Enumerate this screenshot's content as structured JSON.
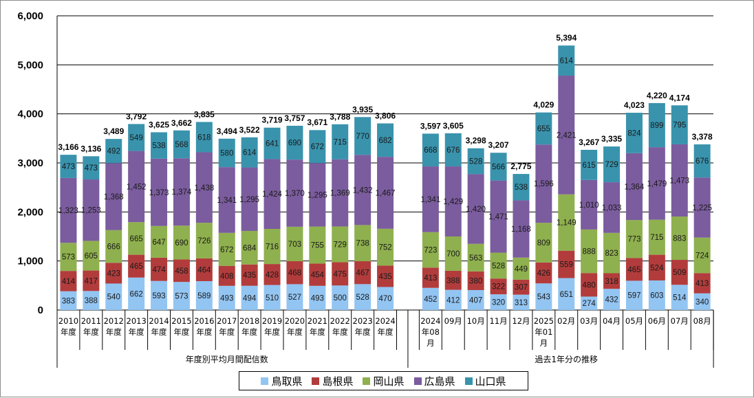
{
  "chart_data": {
    "type": "bar",
    "stacked": true,
    "ylim": [
      0,
      6000
    ],
    "yticks": [
      "0",
      "1,000",
      "2,000",
      "3,000",
      "4,000",
      "5,000",
      "6,000"
    ],
    "grid": true,
    "legend_position": "bottom",
    "groups": [
      "年度別平均月間配信数",
      "過去1年分の推移"
    ],
    "categories": [
      {
        "label": [
          "2010",
          "年度"
        ],
        "group": 0
      },
      {
        "label": [
          "2011",
          "年度"
        ],
        "group": 0
      },
      {
        "label": [
          "2012",
          "年度"
        ],
        "group": 0
      },
      {
        "label": [
          "2013",
          "年度"
        ],
        "group": 0
      },
      {
        "label": [
          "2014",
          "年度"
        ],
        "group": 0
      },
      {
        "label": [
          "2015",
          "年度"
        ],
        "group": 0
      },
      {
        "label": [
          "2016",
          "年度"
        ],
        "group": 0
      },
      {
        "label": [
          "2017",
          "年度"
        ],
        "group": 0
      },
      {
        "label": [
          "2018",
          "年度"
        ],
        "group": 0
      },
      {
        "label": [
          "2019",
          "年度"
        ],
        "group": 0
      },
      {
        "label": [
          "2020",
          "年度"
        ],
        "group": 0
      },
      {
        "label": [
          "2021",
          "年度"
        ],
        "group": 0
      },
      {
        "label": [
          "2022",
          "年度"
        ],
        "group": 0
      },
      {
        "label": [
          "2023",
          "年度"
        ],
        "group": 0
      },
      {
        "label": [
          "2024",
          "年度"
        ],
        "group": 0
      },
      {
        "label": [
          "2024",
          "年08",
          "月"
        ],
        "group": 1
      },
      {
        "label": [
          "09月"
        ],
        "group": 1
      },
      {
        "label": [
          "10月"
        ],
        "group": 1
      },
      {
        "label": [
          "11月"
        ],
        "group": 1
      },
      {
        "label": [
          "12月"
        ],
        "group": 1
      },
      {
        "label": [
          "2025",
          "年01",
          "月"
        ],
        "group": 1
      },
      {
        "label": [
          "02月"
        ],
        "group": 1
      },
      {
        "label": [
          "03月"
        ],
        "group": 1
      },
      {
        "label": [
          "04月"
        ],
        "group": 1
      },
      {
        "label": [
          "05月"
        ],
        "group": 1
      },
      {
        "label": [
          "06月"
        ],
        "group": 1
      },
      {
        "label": [
          "07月"
        ],
        "group": 1
      },
      {
        "label": [
          "08月"
        ],
        "group": 1
      }
    ],
    "series": [
      {
        "name": "鳥取県",
        "color": "#93c5f2",
        "values": [
          383,
          388,
          540,
          662,
          593,
          573,
          589,
          493,
          494,
          510,
          527,
          493,
          500,
          528,
          470,
          452,
          412,
          407,
          320,
          313,
          543,
          651,
          274,
          432,
          597,
          603,
          514,
          340
        ]
      },
      {
        "name": "島根県",
        "color": "#b23c3c",
        "values": [
          414,
          417,
          423,
          465,
          474,
          458,
          464,
          408,
          435,
          428,
          468,
          454,
          475,
          467,
          435,
          413,
          388,
          380,
          322,
          307,
          426,
          559,
          480,
          318,
          465,
          524,
          509,
          413
        ]
      },
      {
        "name": "岡山県",
        "color": "#8fb04e",
        "values": [
          573,
          605,
          666,
          665,
          647,
          690,
          726,
          672,
          684,
          716,
          703,
          755,
          729,
          738,
          752,
          723,
          700,
          563,
          528,
          449,
          809,
          1149,
          888,
          823,
          773,
          715,
          883,
          724
        ]
      },
      {
        "name": "広島県",
        "color": "#7b5c9e",
        "values": [
          1323,
          1253,
          1368,
          1452,
          1373,
          1374,
          1438,
          1341,
          1295,
          1424,
          1370,
          1295,
          1369,
          1432,
          1467,
          1341,
          1429,
          1420,
          1471,
          1168,
          1596,
          2421,
          1010,
          1033,
          1364,
          1479,
          1473,
          1225
        ]
      },
      {
        "name": "山口県",
        "color": "#3993ad",
        "values": [
          473,
          473,
          492,
          549,
          538,
          568,
          618,
          580,
          614,
          641,
          690,
          672,
          715,
          770,
          682,
          668,
          676,
          528,
          566,
          538,
          655,
          614,
          615,
          729,
          824,
          899,
          795,
          676
        ]
      }
    ],
    "totals": [
      3166,
      3136,
      3489,
      3792,
      3625,
      3662,
      3835,
      3494,
      3522,
      3719,
      3757,
      3671,
      3788,
      3935,
      3806,
      3597,
      3605,
      3298,
      3207,
      2775,
      4029,
      5394,
      3267,
      3335,
      4023,
      4220,
      4174,
      3378
    ]
  }
}
